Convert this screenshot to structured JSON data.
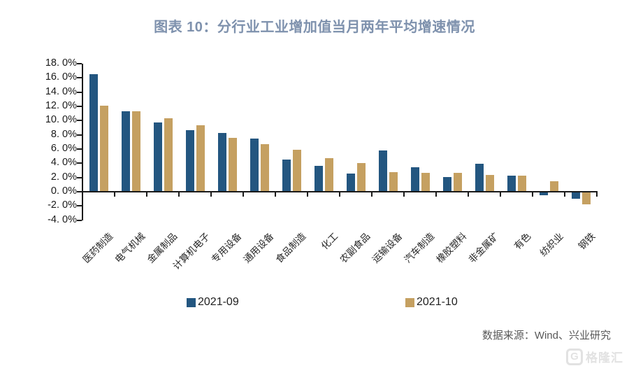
{
  "title": "图表 10：分行业工业增加值当月两年平均增速情况",
  "chart_data": {
    "type": "bar",
    "title": "图表 10：分行业工业增加值当月两年平均增速情况",
    "categories": [
      "医药制造",
      "电气机械",
      "金属制品",
      "计算机电子",
      "专用设备",
      "通用设备",
      "食品制造",
      "化工",
      "农副食品",
      "运输设备",
      "汽车制造",
      "橡胶塑料",
      "非金属矿",
      "有色",
      "纺织业",
      "钢铁"
    ],
    "series": [
      {
        "name": "2021-09",
        "color": "#235680",
        "values": [
          16.5,
          11.3,
          9.7,
          8.7,
          8.3,
          7.5,
          4.5,
          3.6,
          2.6,
          5.8,
          3.4,
          2.1,
          3.9,
          2.3,
          -0.4,
          -0.9
        ]
      },
      {
        "name": "2021-10",
        "color": "#c5a061",
        "values": [
          12.1,
          11.3,
          10.3,
          9.3,
          7.6,
          6.7,
          5.9,
          4.7,
          4.0,
          2.8,
          2.7,
          2.7,
          2.4,
          2.3,
          1.5,
          -1.7
        ]
      }
    ],
    "ylim": [
      -4,
      18
    ],
    "y_tick_step": 2,
    "y_tick_labels": [
      "18. 0%",
      "16. 0%",
      "14. 0%",
      "12. 0%",
      "10. 0%",
      "8. 0%",
      "6. 0%",
      "4. 0%",
      "2. 0%",
      "0. 0%",
      "-2. 0%",
      "-4. 0%"
    ],
    "unit": "%",
    "grid": false,
    "legend_position": "bottom",
    "legend": [
      "2021-09",
      "2021-10"
    ]
  },
  "colors": {
    "title": "#7e91ad",
    "series_2021_09": "#235680",
    "series_2021_10": "#c5a061",
    "axis": "#1a1a1a",
    "source_text": "#595959",
    "watermark": "#e2e2e2"
  },
  "source": "数据来源：Wind、兴业研究",
  "watermark": {
    "icon_letter": "G",
    "logo_text": "格隆汇"
  }
}
